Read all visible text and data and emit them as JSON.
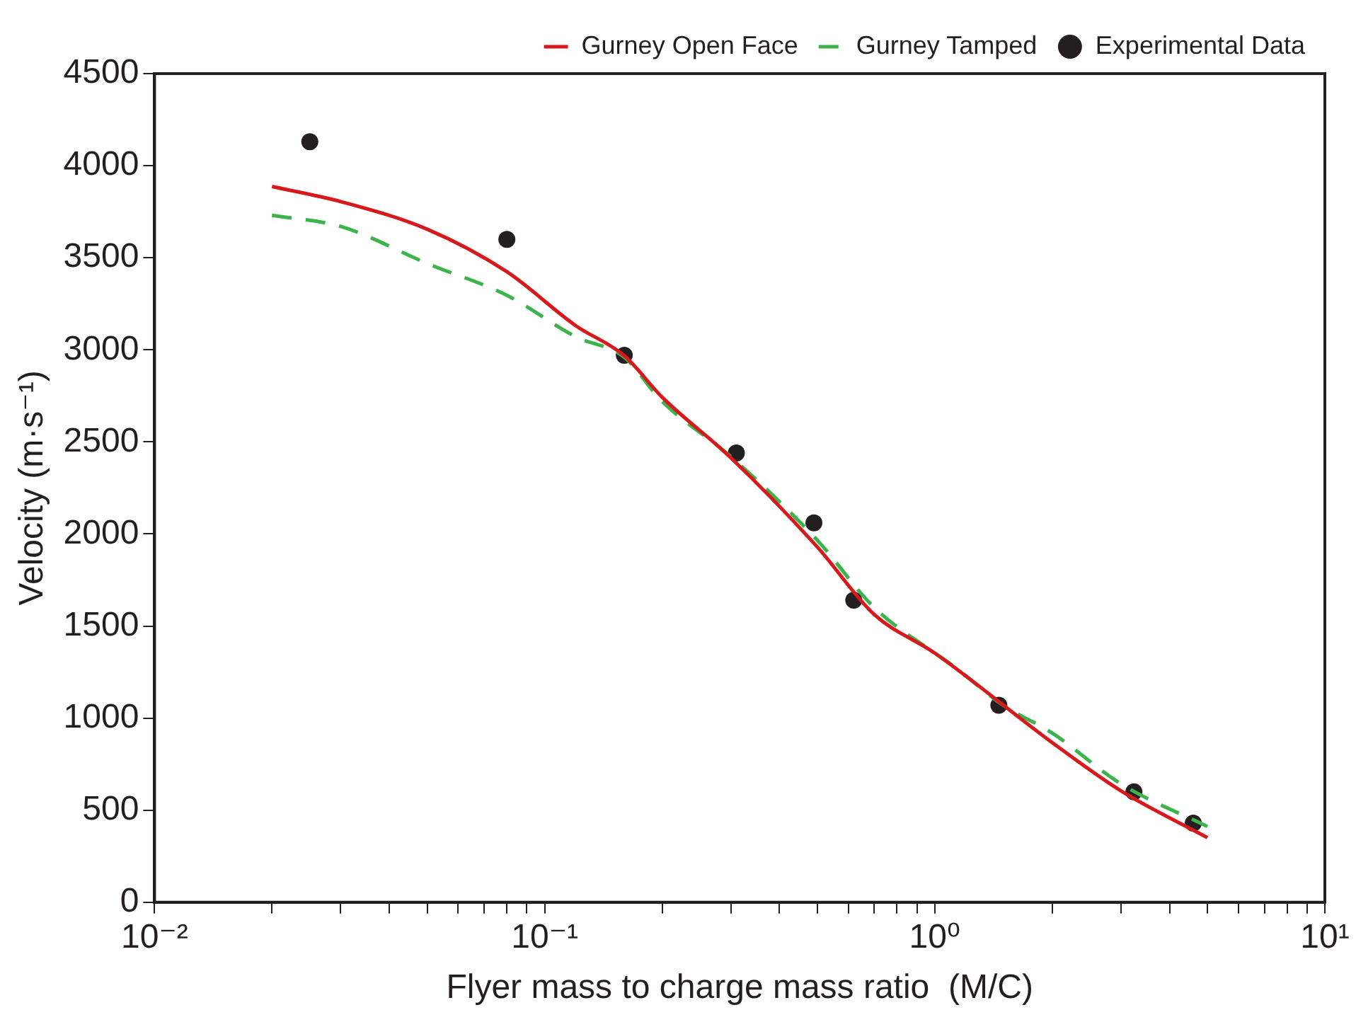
{
  "chart_data": {
    "type": "line",
    "xlabel": "Flyer mass to charge mass ratio  (M/C)",
    "ylabel": "Velocity (m·s⁻¹)",
    "log": "x",
    "grid": false,
    "legend": "top right",
    "xlim": [
      0.01,
      10
    ],
    "xticks": [
      {
        "value": 0.01,
        "label": "10⁻²"
      },
      {
        "value": 0.02,
        "label": null
      },
      {
        "value": 0.03,
        "label": null
      },
      {
        "value": 0.04,
        "label": null
      },
      {
        "value": 0.05,
        "label": null
      },
      {
        "value": 0.06,
        "label": null
      },
      {
        "value": 0.07,
        "label": null
      },
      {
        "value": 0.08,
        "label": null
      },
      {
        "value": 0.09,
        "label": null
      },
      {
        "value": 0.1,
        "label": "10⁻¹"
      },
      {
        "value": 0.2,
        "label": null
      },
      {
        "value": 0.3,
        "label": null
      },
      {
        "value": 0.4,
        "label": null
      },
      {
        "value": 0.5,
        "label": null
      },
      {
        "value": 0.6,
        "label": null
      },
      {
        "value": 0.7,
        "label": null
      },
      {
        "value": 0.8,
        "label": null
      },
      {
        "value": 0.9,
        "label": null
      },
      {
        "value": 1,
        "label": "10⁰"
      },
      {
        "value": 2,
        "label": null
      },
      {
        "value": 3,
        "label": null
      },
      {
        "value": 4,
        "label": null
      },
      {
        "value": 5,
        "label": null
      },
      {
        "value": 6,
        "label": null
      },
      {
        "value": 7,
        "label": null
      },
      {
        "value": 8,
        "label": null
      },
      {
        "value": 9,
        "label": null
      },
      {
        "value": 10,
        "label": "10¹"
      }
    ],
    "ylim": [
      0,
      4500
    ],
    "yticks": [
      0,
      500,
      1000,
      1500,
      2000,
      2500,
      3000,
      3500,
      4000,
      4500
    ],
    "series": [
      {
        "name": "Gurney Open Face",
        "type": "line",
        "color": "#d7191c",
        "line_style": "solid",
        "marker": "none",
        "x": [
          0.02,
          0.03,
          0.05,
          0.08,
          0.12,
          0.16,
          0.2,
          0.3,
          0.5,
          0.7,
          1,
          2,
          3,
          5
        ],
        "values": [
          3887,
          3805,
          3655,
          3424,
          3132,
          2968,
          2743,
          2414,
          1929,
          1562,
          1353,
          867,
          605,
          351
        ]
      },
      {
        "name": "Gurney Tamped",
        "type": "line",
        "color": "#3cb44b",
        "line_style": "dashed",
        "marker": "none",
        "x": [
          0.02,
          0.03,
          0.05,
          0.08,
          0.12,
          0.16,
          0.2,
          0.3,
          0.5,
          0.7,
          1,
          1.1,
          1.5,
          2,
          3,
          5
        ],
        "values": [
          3730,
          3670,
          3469,
          3296,
          3072,
          2960,
          2720,
          2420,
          1966,
          1600,
          1353,
          1293,
          1069,
          919,
          643,
          411
        ]
      },
      {
        "name": "Experimental Data",
        "type": "scatter",
        "color": "#231f20",
        "marker": "circle",
        "x": [
          0.025,
          0.08,
          0.16,
          0.31,
          0.49,
          0.62,
          1.46,
          3.24,
          4.6
        ],
        "values": [
          4130,
          3600,
          2970,
          2440,
          2060,
          1640,
          1070,
          600,
          430
        ]
      }
    ]
  }
}
